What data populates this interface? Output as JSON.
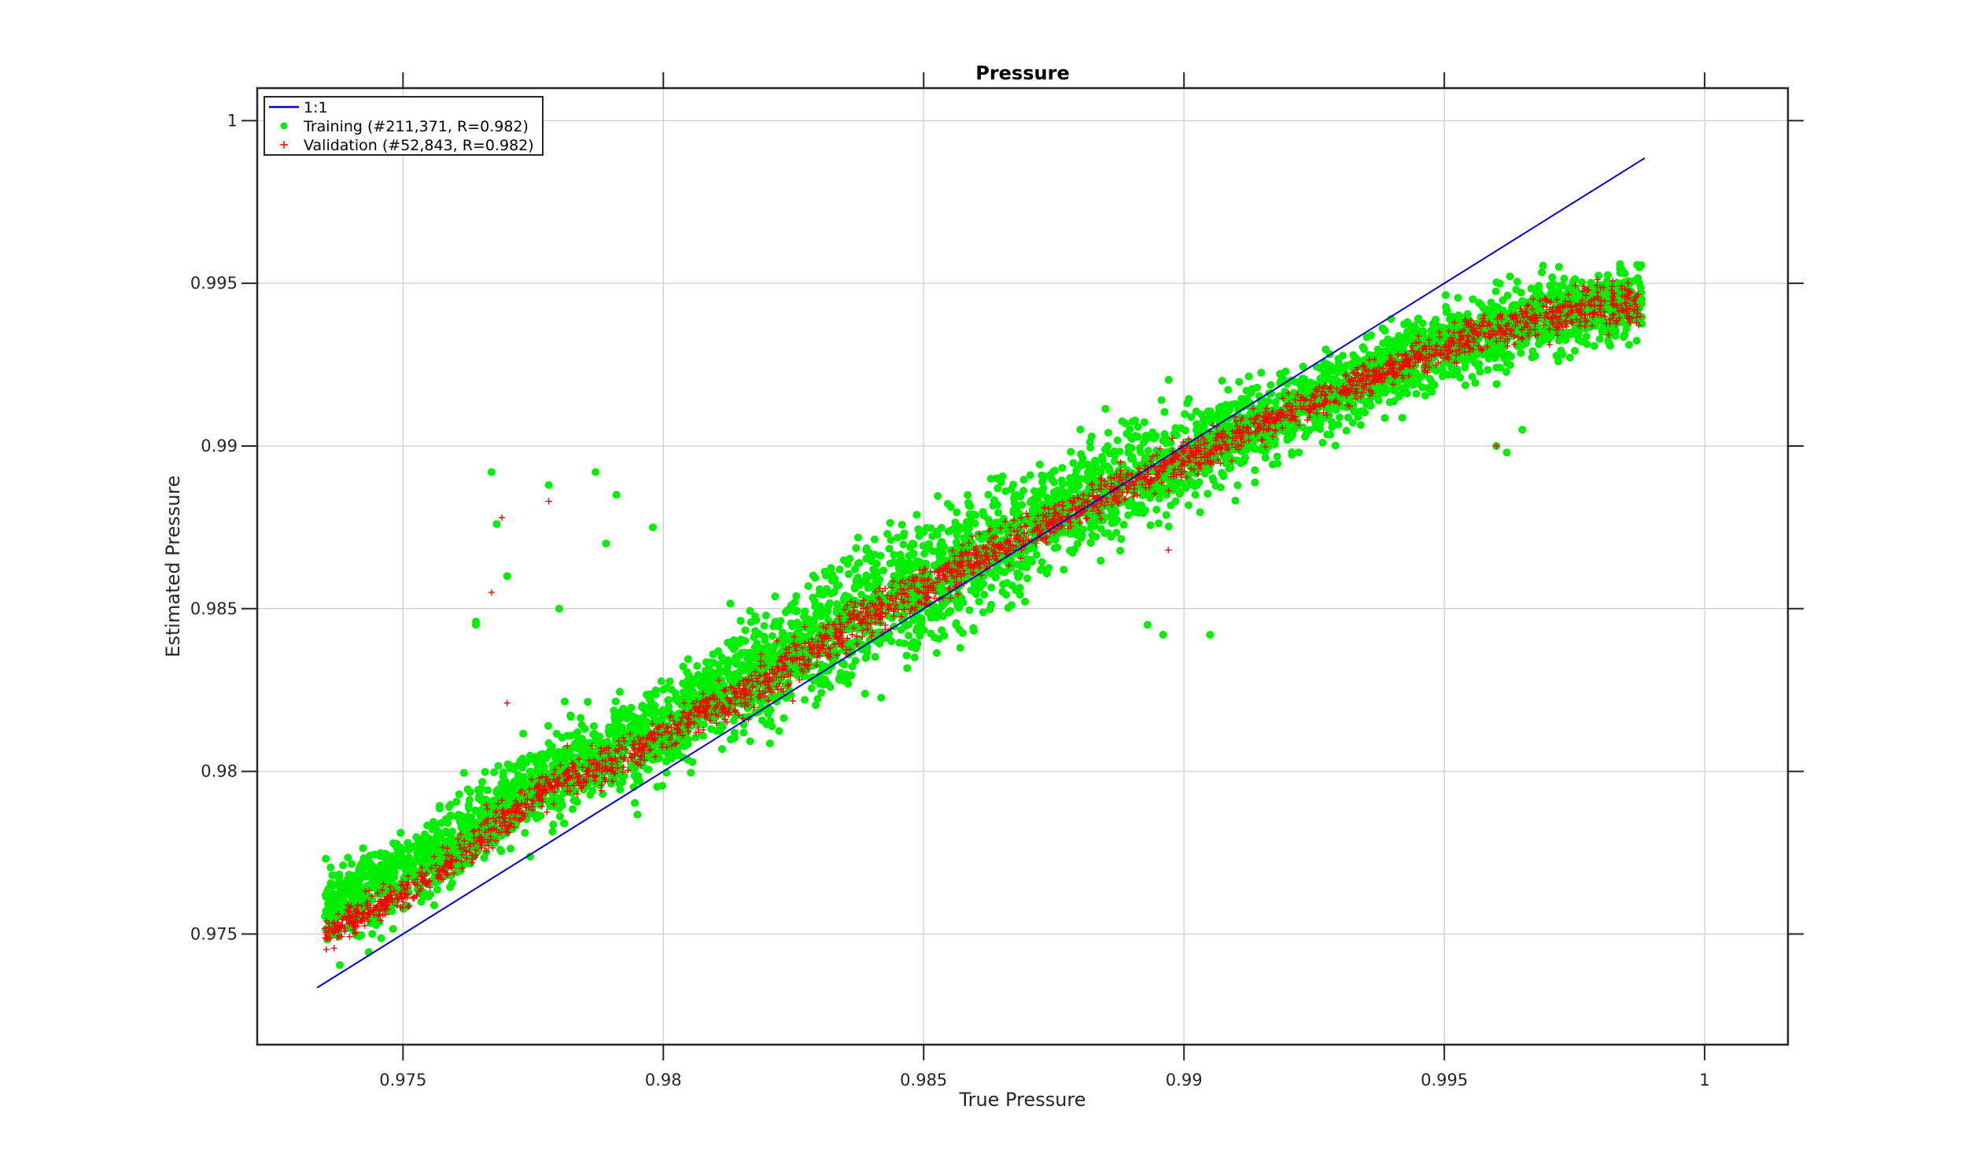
{
  "chart_data": {
    "type": "scatter",
    "title": "Pressure",
    "xlabel": "True Pressure",
    "ylabel": "Estimated Pressure",
    "xlim": [
      0.9722,
      1.0016
    ],
    "ylim": [
      0.9716,
      1.001
    ],
    "xticks": [
      0.975,
      0.98,
      0.985,
      0.99,
      0.995,
      1
    ],
    "xtick_labels": [
      "0.975",
      "0.98",
      "0.985",
      "0.99",
      "0.995",
      "1"
    ],
    "yticks": [
      0.975,
      0.98,
      0.985,
      0.99,
      0.995,
      1
    ],
    "ytick_labels": [
      "0.975",
      "0.98",
      "0.985",
      "0.99",
      "0.995",
      "1"
    ],
    "grid": true,
    "legend_position": "top-left",
    "series": [
      {
        "name": "1:1",
        "kind": "line",
        "color": "#0000cc",
        "x": [
          0.97335,
          0.99885
        ],
        "y": [
          0.97335,
          0.99885
        ]
      },
      {
        "name": "Training (#211,371, R=0.982)",
        "kind": "scatter",
        "marker": "dot",
        "color": "#00ee00",
        "count": 211371,
        "R": 0.982,
        "trend": [
          [
            0.9735,
            0.9758
          ],
          [
            0.975,
            0.9768
          ],
          [
            0.976,
            0.9778
          ],
          [
            0.977,
            0.979
          ],
          [
            0.978,
            0.98
          ],
          [
            0.979,
            0.9806
          ],
          [
            0.98,
            0.9812
          ],
          [
            0.981,
            0.9824
          ],
          [
            0.982,
            0.9831
          ],
          [
            0.983,
            0.984
          ],
          [
            0.984,
            0.985
          ],
          [
            0.985,
            0.9857
          ],
          [
            0.986,
            0.9866
          ],
          [
            0.987,
            0.9874
          ],
          [
            0.988,
            0.9882
          ],
          [
            0.989,
            0.989
          ],
          [
            0.99,
            0.9897
          ],
          [
            0.991,
            0.9904
          ],
          [
            0.992,
            0.991
          ],
          [
            0.993,
            0.9917
          ],
          [
            0.994,
            0.9924
          ],
          [
            0.995,
            0.9931
          ],
          [
            0.996,
            0.9936
          ],
          [
            0.997,
            0.994
          ],
          [
            0.998,
            0.9943
          ],
          [
            0.9988,
            0.9944
          ]
        ],
        "spread": [
          [
            0.9735,
            0.001
          ],
          [
            0.977,
            0.0012
          ],
          [
            0.98,
            0.0012
          ],
          [
            0.9825,
            0.0016
          ],
          [
            0.985,
            0.0018
          ],
          [
            0.987,
            0.0014
          ],
          [
            0.99,
            0.0012
          ],
          [
            0.993,
            0.001
          ],
          [
            0.995,
            0.001
          ],
          [
            0.9988,
            0.001
          ]
        ],
        "outliers": [
          [
            0.9767,
            0.9892
          ],
          [
            0.9768,
            0.9876
          ],
          [
            0.9778,
            0.9888
          ],
          [
            0.9787,
            0.9892
          ],
          [
            0.9791,
            0.9885
          ],
          [
            0.9798,
            0.9875
          ],
          [
            0.9764,
            0.9845
          ],
          [
            0.977,
            0.986
          ],
          [
            0.9764,
            0.9846
          ],
          [
            0.978,
            0.985
          ],
          [
            0.9789,
            0.987
          ],
          [
            0.9893,
            0.9845
          ],
          [
            0.9896,
            0.9842
          ],
          [
            0.9905,
            0.9842
          ],
          [
            0.988,
            0.9885
          ],
          [
            0.996,
            0.99
          ],
          [
            0.9962,
            0.9898
          ],
          [
            0.9965,
            0.9905
          ]
        ]
      },
      {
        "name": "Validation (#52,843, R=0.982)",
        "kind": "scatter",
        "marker": "plus",
        "color": "#ff0000",
        "count": 52843,
        "R": 0.982,
        "trend": [
          [
            0.9735,
            0.975
          ],
          [
            0.975,
            0.9762
          ],
          [
            0.976,
            0.9773
          ],
          [
            0.977,
            0.9786
          ],
          [
            0.978,
            0.9797
          ],
          [
            0.979,
            0.9803
          ],
          [
            0.98,
            0.9811
          ],
          [
            0.981,
            0.982
          ],
          [
            0.982,
            0.9828
          ],
          [
            0.983,
            0.9838
          ],
          [
            0.984,
            0.9848
          ],
          [
            0.985,
            0.9856
          ],
          [
            0.986,
            0.9865
          ],
          [
            0.987,
            0.9873
          ],
          [
            0.988,
            0.9881
          ],
          [
            0.989,
            0.9889
          ],
          [
            0.99,
            0.9896
          ],
          [
            0.991,
            0.9903
          ],
          [
            0.992,
            0.991
          ],
          [
            0.993,
            0.9917
          ],
          [
            0.994,
            0.9924
          ],
          [
            0.995,
            0.9931
          ],
          [
            0.996,
            0.9936
          ],
          [
            0.997,
            0.994
          ],
          [
            0.998,
            0.9943
          ],
          [
            0.9988,
            0.9944
          ]
        ],
        "spread": [
          [
            0.9735,
            0.0004
          ],
          [
            0.977,
            0.0005
          ],
          [
            0.98,
            0.0005
          ],
          [
            0.9825,
            0.0006
          ],
          [
            0.985,
            0.0006
          ],
          [
            0.987,
            0.0005
          ],
          [
            0.99,
            0.0005
          ],
          [
            0.993,
            0.0004
          ],
          [
            0.995,
            0.0005
          ],
          [
            0.9988,
            0.0006
          ]
        ],
        "outliers": [
          [
            0.977,
            0.9821
          ],
          [
            0.9767,
            0.9855
          ],
          [
            0.9769,
            0.9878
          ],
          [
            0.9778,
            0.9883
          ],
          [
            0.9897,
            0.9868
          ],
          [
            0.996,
            0.99
          ]
        ]
      }
    ]
  }
}
